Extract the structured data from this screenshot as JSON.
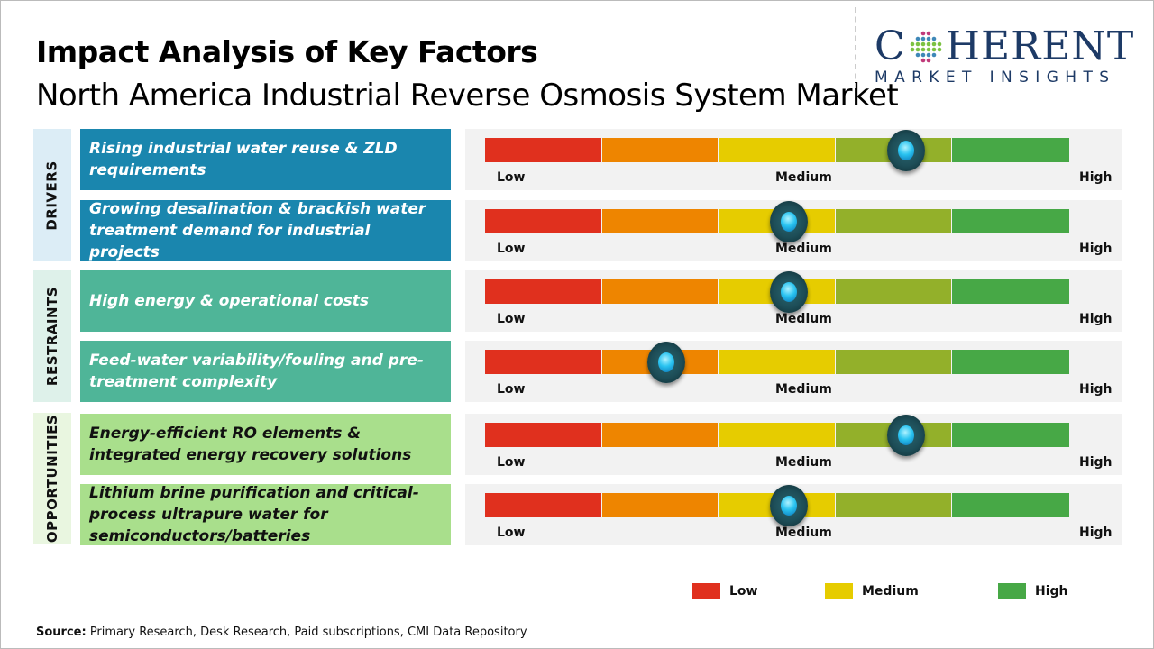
{
  "header": {
    "title": "Impact Analysis of Key Factors",
    "subtitle": "North America Industrial Reverse Osmosis System Market"
  },
  "logo": {
    "line1_a": "C",
    "line1_b": "HERENT",
    "line2": "MARKET INSIGHTS"
  },
  "colors": {
    "drivers": "#1a86ae",
    "restraints": "#4fb598",
    "opportunities": "#a9df8c",
    "low": "#e0301e",
    "medium": "#e6cc00",
    "high": "#47a846",
    "segments": [
      "#e0301e",
      "#ee8500",
      "#e6cc00",
      "#93b02a",
      "#47a846"
    ]
  },
  "chart_data": {
    "type": "gauge",
    "scale_labels": {
      "low": "Low",
      "medium": "Medium",
      "high": "High"
    },
    "categories": [
      {
        "name": "DRIVERS",
        "factors": [
          {
            "label": "Rising industrial water reuse & ZLD requirements",
            "impact": 0.72
          },
          {
            "label": "Growing desalination & brackish water treatment demand for industrial projects",
            "impact": 0.52
          }
        ]
      },
      {
        "name": "RESTRAINTS",
        "factors": [
          {
            "label": "High energy & operational costs",
            "impact": 0.52
          },
          {
            "label": "Feed-water variability/fouling and pre-treatment complexity",
            "impact": 0.31
          }
        ]
      },
      {
        "name": "OPPORTUNITIES",
        "factors": [
          {
            "label": "Energy-efficient RO elements & integrated energy recovery solutions",
            "impact": 0.72
          },
          {
            "label": "Lithium brine purification and critical-process ultrapure water for semiconductors/batteries",
            "impact": 0.52
          }
        ]
      }
    ],
    "legend": [
      "Low",
      "Medium",
      "High"
    ]
  },
  "source": {
    "label": "Source:",
    "text": " Primary Research, Desk Research, Paid subscriptions, CMI Data Repository"
  }
}
